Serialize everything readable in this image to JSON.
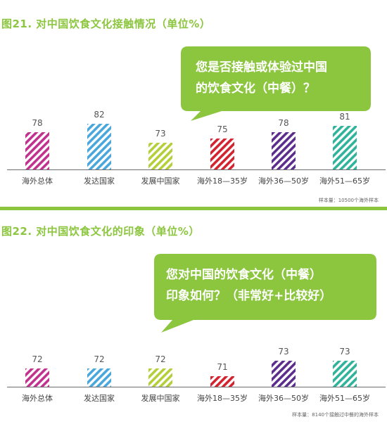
{
  "colors": {
    "accent": "#8cc63f",
    "bars": [
      "#c1328e",
      "#4aa7dc",
      "#b5cf3a",
      "#d3232f",
      "#5b2e8c",
      "#2fb39a"
    ]
  },
  "chart_data": [
    {
      "type": "bar",
      "title": "图21. 对中国饮食文化接触情况（单位%）",
      "question_line1": "您是否接触或体验过中国",
      "question_line2": "的饮食文化（中餐）？",
      "categories": [
        "海外总体",
        "发达国家",
        "发展中国家",
        "海外18—35岁",
        "海外36—50岁",
        "海外51—65岁"
      ],
      "values": [
        78,
        82,
        73,
        75,
        78,
        81
      ],
      "value_labels": [
        "78",
        "82",
        "73",
        "75",
        "78",
        "81"
      ],
      "note": "样本量：10500个海外样本"
    },
    {
      "type": "bar",
      "title": "图22. 对中国饮食文化的印象（单位%）",
      "question_line1": "您对中国的饮食文化（中餐）",
      "question_line2": "印象如何？（非常好+比较好）",
      "categories": [
        "海外总体",
        "发达国家",
        "发展中国家",
        "海外18—35岁",
        "海外36—50岁",
        "海外51—65岁"
      ],
      "values": [
        72,
        72,
        72,
        71,
        73,
        73
      ],
      "value_labels": [
        "72",
        "72",
        "72",
        "71",
        "73",
        "73"
      ],
      "note": "样本量：8140个接触过中餐的海外样本"
    }
  ]
}
